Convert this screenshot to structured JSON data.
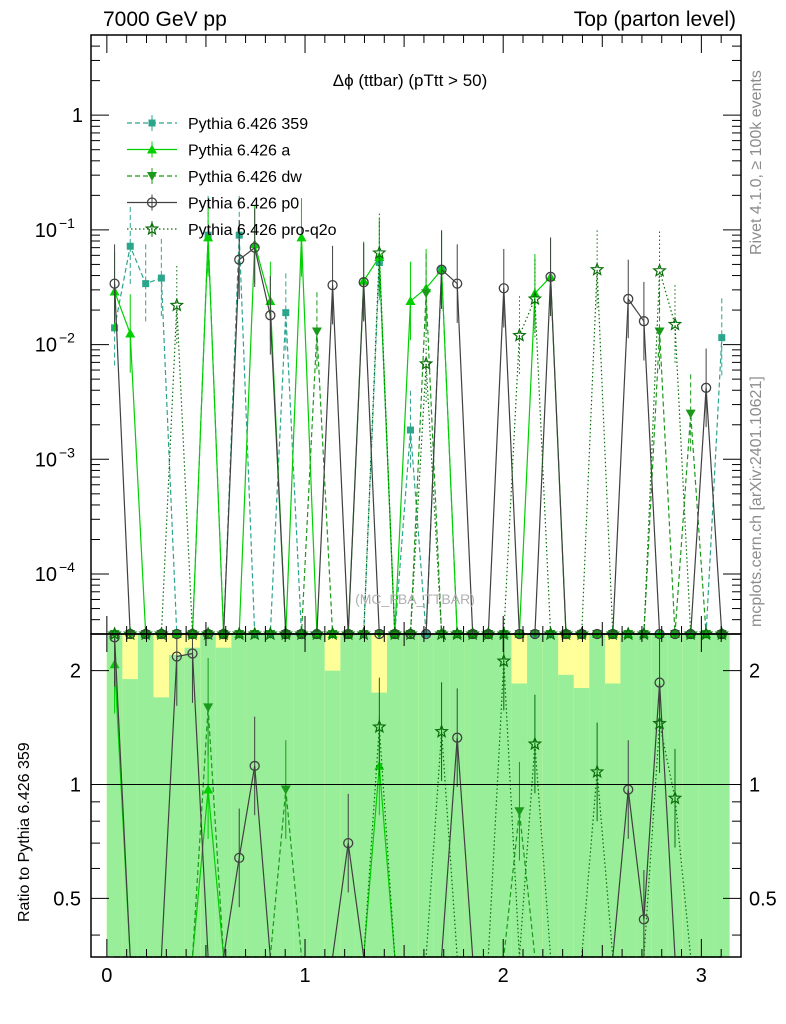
{
  "header": {
    "left": "7000 GeV pp",
    "right": "Top (parton level)"
  },
  "side_texts": {
    "rivet": "Rivet 4.1.0, ≥ 100k events",
    "mcplots": "mcplots.cern.ch [arXiv:2401.10621]",
    "ratio_ylabel": "Ratio to Pythia 6.426 359"
  },
  "colors": {
    "p359": "#2ca58d",
    "a": "#00d000",
    "dw": "#1a9a1a",
    "p0": "#404040",
    "proq2o": "#0a6e0a",
    "band_green": "#99ee99",
    "band_yellow": "#ffff99"
  },
  "chart_data": {
    "type": "line",
    "title": "Δϕ (ttbar) (pTtt > 50)",
    "watermark": "(MC_FBA_TTBAR)",
    "x_ticks": [
      "0",
      "1",
      "2",
      "3"
    ],
    "xlim": [
      -0.08,
      3.2
    ],
    "main": {
      "yscale": "log",
      "ylim": [
        3e-05,
        5.0
      ],
      "y_ticks": [
        {
          "value": 1,
          "label": "1"
        },
        {
          "value": 0.1,
          "label": "10",
          "exp": "−1"
        },
        {
          "value": 0.01,
          "label": "10",
          "exp": "−2"
        },
        {
          "value": 0.001,
          "label": "10",
          "exp": "−3"
        },
        {
          "value": 0.0001,
          "label": "10",
          "exp": "−4"
        }
      ]
    },
    "ratio": {
      "yscale": "log",
      "ylim": [
        0.35,
        2.5
      ],
      "ylabel": "Ratio to Pythia 6.426 359",
      "y_ticks": [
        {
          "value": 0.5,
          "label": "0.5"
        },
        {
          "value": 1,
          "label": "1"
        },
        {
          "value": 2,
          "label": "2"
        }
      ]
    },
    "x": [
      0.039,
      0.118,
      0.196,
      0.275,
      0.353,
      0.432,
      0.511,
      0.589,
      0.668,
      0.746,
      0.825,
      0.903,
      0.982,
      1.06,
      1.139,
      1.218,
      1.296,
      1.375,
      1.453,
      1.532,
      1.611,
      1.689,
      1.768,
      1.846,
      1.925,
      2.003,
      2.082,
      2.16,
      2.239,
      2.317,
      2.396,
      2.474,
      2.553,
      2.631,
      2.71,
      2.789,
      2.867,
      2.946,
      3.024,
      3.103
    ],
    "series": [
      {
        "name": "Pythia 6.426 359",
        "key": "p359",
        "style": "dashed",
        "marker": "square",
        "values": [
          0.014,
          0.072,
          0.034,
          0.038,
          0,
          0,
          0.09,
          0,
          0.09,
          0,
          0,
          0.019,
          0,
          0,
          0,
          0,
          0,
          0.052,
          0,
          0.0018,
          0,
          0.045,
          0,
          0,
          0,
          0,
          0,
          0,
          0,
          0,
          0,
          0,
          0,
          0,
          0,
          0,
          0,
          0,
          0,
          0.0115
        ]
      },
      {
        "name": "Pythia 6.426 a",
        "key": "a",
        "style": "solid",
        "marker": "triangle-up",
        "values": [
          0.029,
          0.0125,
          0,
          0,
          0,
          0,
          0.086,
          0,
          0,
          0.075,
          0.024,
          0,
          0.086,
          0,
          0,
          0,
          0.036,
          0.058,
          0,
          0.024,
          0.031,
          0.045,
          0,
          0,
          0,
          0,
          0,
          0.028,
          0.039,
          0,
          0,
          0,
          0,
          0,
          0,
          0,
          0,
          0,
          0,
          0
        ]
      },
      {
        "name": "Pythia 6.426 dw",
        "key": "dw",
        "style": "dashed",
        "marker": "triangle-down",
        "values": [
          0,
          0,
          0,
          0,
          0,
          0,
          0,
          0,
          0,
          0,
          0,
          0,
          0,
          0.013,
          0,
          0,
          0,
          0,
          0,
          0,
          0.028,
          0,
          0,
          0,
          0,
          0,
          0,
          0,
          0,
          0,
          0,
          0,
          0,
          0,
          0,
          0.013,
          0,
          0.0025,
          0,
          0
        ]
      },
      {
        "name": "Pythia 6.426 p0",
        "key": "p0",
        "style": "solid",
        "marker": "circle",
        "values": [
          0.034,
          0,
          0,
          0,
          0,
          0,
          0,
          0,
          0.055,
          0.07,
          0.018,
          0,
          0,
          0,
          0.033,
          0,
          0.035,
          0,
          0,
          0,
          0,
          0.045,
          0.034,
          0,
          0,
          0.031,
          0,
          0,
          0.039,
          0,
          0,
          0,
          0,
          0.025,
          0.016,
          0,
          0,
          0,
          0.0042,
          0
        ]
      },
      {
        "name": "Pythia 6.426 pro-q2o",
        "key": "proq2o",
        "style": "dotted",
        "marker": "star",
        "values": [
          0,
          0,
          0,
          0,
          0.022,
          0,
          0,
          0,
          0,
          0,
          0,
          0,
          0,
          0,
          0,
          0,
          0,
          0.063,
          0,
          0,
          0.0068,
          0,
          0,
          0,
          0,
          0,
          0.012,
          0.025,
          0,
          0,
          0,
          0.045,
          0,
          0,
          0,
          0.044,
          0.015,
          0,
          0,
          0
        ]
      }
    ],
    "ratios": {
      "a": [
        2.08,
        0,
        0,
        0,
        0,
        0,
        0.97,
        0,
        0,
        0,
        0,
        0,
        0,
        0,
        0,
        0,
        0,
        1.12,
        0,
        0,
        0,
        0,
        0,
        0,
        0,
        0,
        0,
        0,
        0,
        0,
        0,
        0,
        0,
        0,
        0,
        0,
        0,
        0,
        0,
        0
      ],
      "dw": [
        0,
        0,
        0,
        0,
        0,
        0,
        1.6,
        0,
        0,
        0,
        0,
        0.97,
        0,
        0,
        0,
        0,
        0,
        0,
        0,
        0,
        0,
        0,
        0,
        0,
        0,
        0,
        0.85,
        0,
        0,
        0,
        0,
        0,
        0,
        0,
        0,
        0,
        0,
        0,
        0,
        0
      ],
      "p0": [
        2.45,
        0,
        0,
        0,
        2.18,
        2.22,
        0,
        0,
        0.64,
        1.12,
        0,
        0,
        0,
        0,
        0,
        0.7,
        0,
        0,
        0,
        0,
        0,
        0,
        1.33,
        0,
        0,
        0,
        0,
        0,
        0,
        0,
        0,
        0,
        0,
        0.97,
        0.44,
        1.86,
        0,
        0,
        0,
        0
      ],
      "proq2o": [
        0,
        0,
        0,
        0,
        0,
        0,
        0,
        0,
        0,
        0,
        0,
        0,
        0,
        0,
        0,
        0,
        0,
        1.42,
        0,
        0,
        0,
        1.38,
        0,
        0,
        0,
        2.12,
        0,
        1.28,
        0,
        0,
        0,
        1.08,
        0,
        0,
        0,
        1.45,
        0.92,
        0,
        0,
        0
      ]
    },
    "band_green": [
      2.5,
      2.5,
      2.5,
      2.5,
      2.5,
      2.5,
      2.5,
      2.5,
      2.5,
      2.5,
      2.5,
      2.5,
      2.5,
      2.5,
      2.5,
      2.5,
      2.5,
      2.5,
      2.5,
      2.5,
      2.5,
      2.5,
      2.5,
      2.5,
      2.5,
      2.5,
      2.5,
      2.5,
      2.5,
      2.5,
      2.5,
      2.5,
      2.5,
      2.5,
      2.5,
      2.5,
      2.5,
      2.5,
      2.5,
      2.5
    ],
    "band_yellow": [
      2.5,
      2.5,
      2.5,
      2.5,
      2.5,
      2.5,
      2.5,
      2.5,
      2.5,
      2.5,
      2.5,
      2.5,
      2.5,
      2.5,
      2.5,
      2.5,
      2.5,
      2.5,
      2.5,
      2.5,
      2.5,
      2.5,
      2.5,
      2.5,
      2.5,
      2.5,
      2.5,
      2.5,
      2.5,
      2.5,
      2.5,
      2.5,
      2.5,
      2.5,
      2.5,
      2.5,
      2.5,
      2.5,
      2.5,
      2.5
    ],
    "band_green_top": [
      2.5,
      2.2,
      2.5,
      2.3,
      2.2,
      2.3,
      2.5,
      2.3,
      2.5,
      2.5,
      2.5,
      2.5,
      2.5,
      2.5,
      2.3,
      2.5,
      2.5,
      2.3,
      2.5,
      2.5,
      2.5,
      2.5,
      2.5,
      2.5,
      2.5,
      2.5,
      2.5,
      2.5,
      2.5,
      2.5,
      2.3,
      2.5,
      2.3,
      2.5,
      2.5,
      2.5,
      2.5,
      2.5,
      2.5,
      2.5
    ],
    "band_yellow_top": [
      2.5,
      1.9,
      2.5,
      1.7,
      2.5,
      2.5,
      2.5,
      2.5,
      2.5,
      2.5,
      2.5,
      2.5,
      2.5,
      2.5,
      2.0,
      2.5,
      2.5,
      1.75,
      2.5,
      2.5,
      2.5,
      2.5,
      2.5,
      2.5,
      2.5,
      2.5,
      1.85,
      2.5,
      2.5,
      1.95,
      1.8,
      2.5,
      1.85,
      2.5,
      2.5,
      2.5,
      2.5,
      2.5,
      2.5,
      2.5
    ]
  }
}
